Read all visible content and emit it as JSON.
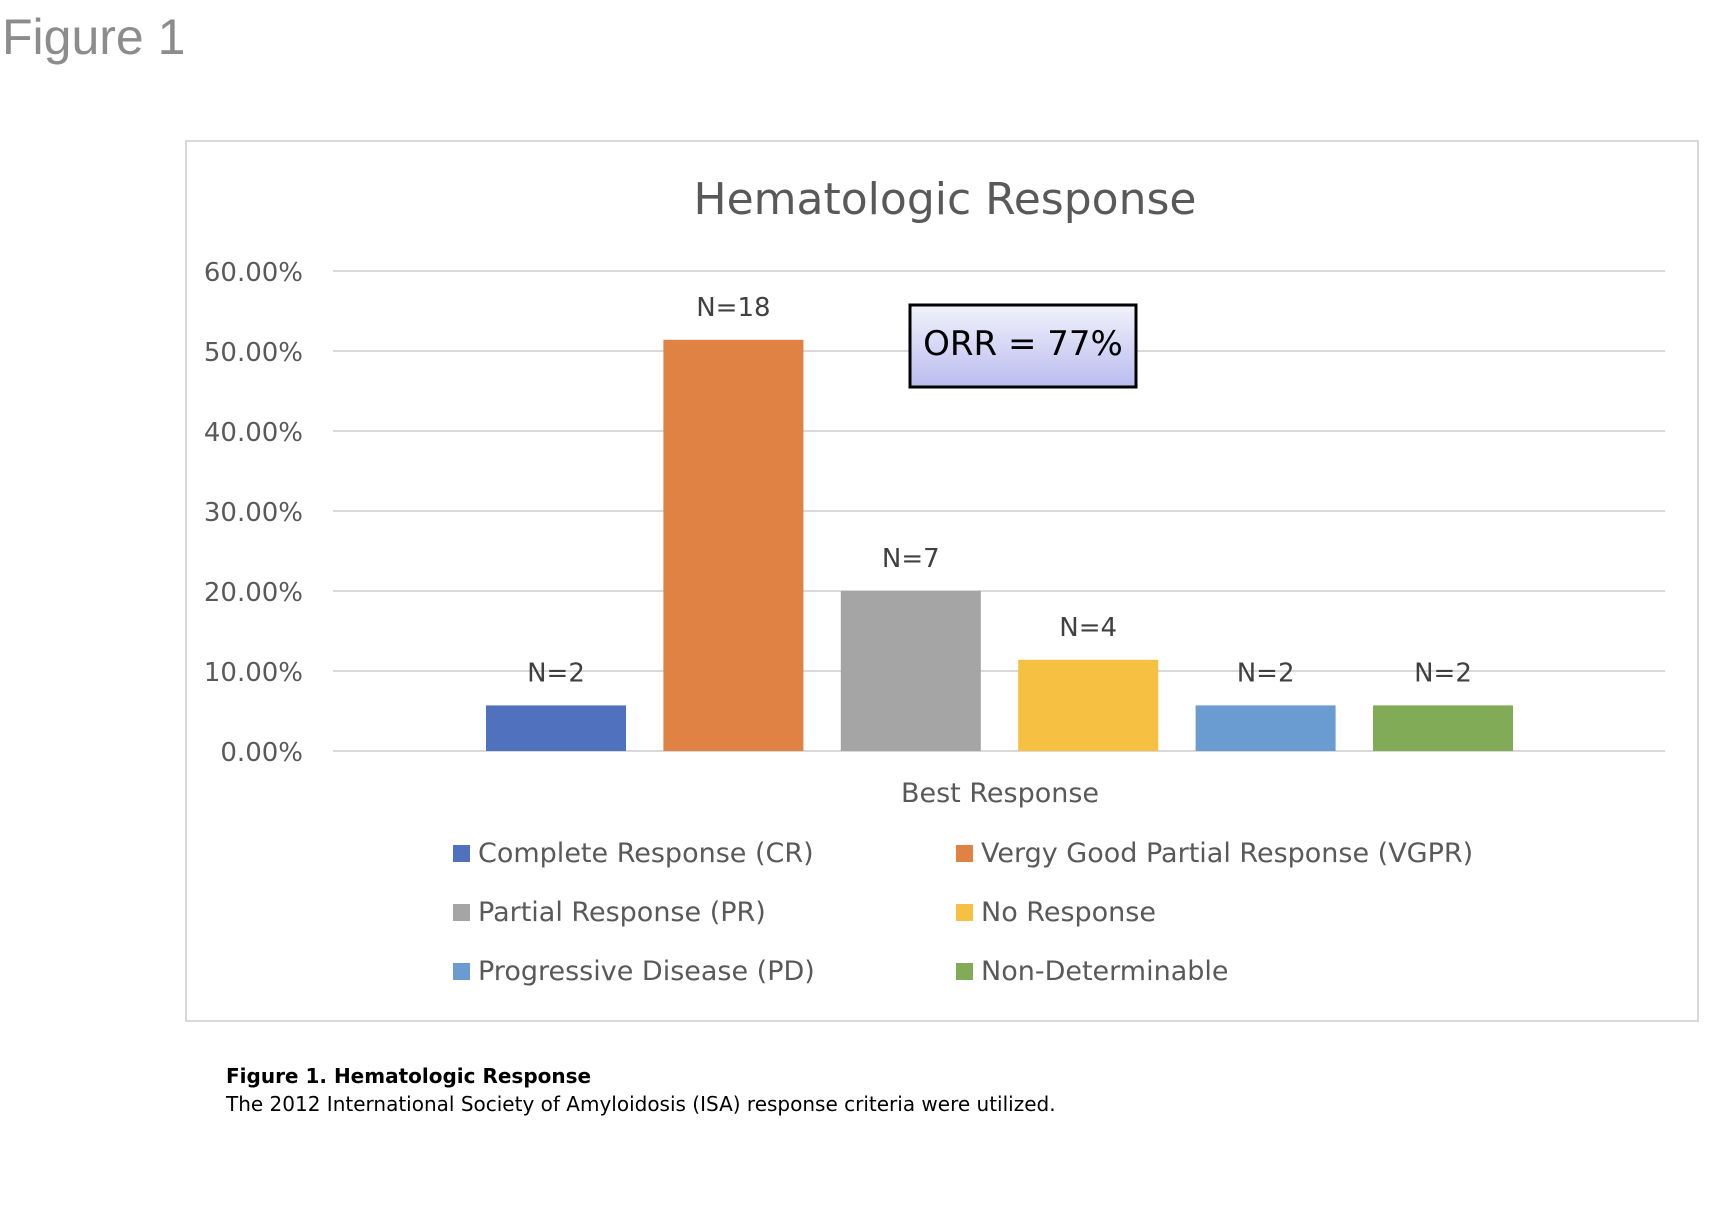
{
  "figure_label": "Figure 1",
  "caption": {
    "title": "Figure 1. Hematologic Response",
    "text": "The 2012 International Society of Amyloidosis (ISA) response criteria were utilized."
  },
  "chart_data": {
    "type": "bar",
    "title": "Hematologic Response",
    "xlabel": "Best Response",
    "ylabel": "",
    "ylim": [
      0,
      0.6
    ],
    "yticks": [
      "0.00%",
      "10.00%",
      "20.00%",
      "30.00%",
      "40.00%",
      "50.00%",
      "60.00%"
    ],
    "grid": true,
    "legend_position": "bottom",
    "annotation": "ORR = 77%",
    "series": [
      {
        "name": "Complete Response (CR)",
        "value": 0.057,
        "label": "N=2",
        "color": "#4f71be"
      },
      {
        "name": "Vergy Good Partial Response (VGPR)",
        "value": 0.514,
        "label": "N=18",
        "color": "#df8244"
      },
      {
        "name": "Partial Response (PR)",
        "value": 0.2,
        "label": "N=7",
        "color": "#a5a5a5"
      },
      {
        "name": "No Response",
        "value": 0.114,
        "label": "N=4",
        "color": "#f6c142"
      },
      {
        "name": "Progressive Disease (PD)",
        "value": 0.057,
        "label": "N=2",
        "color": "#6a9bd1"
      },
      {
        "name": "Non-Determinable",
        "value": 0.057,
        "label": "N=2",
        "color": "#82ab57"
      }
    ]
  }
}
